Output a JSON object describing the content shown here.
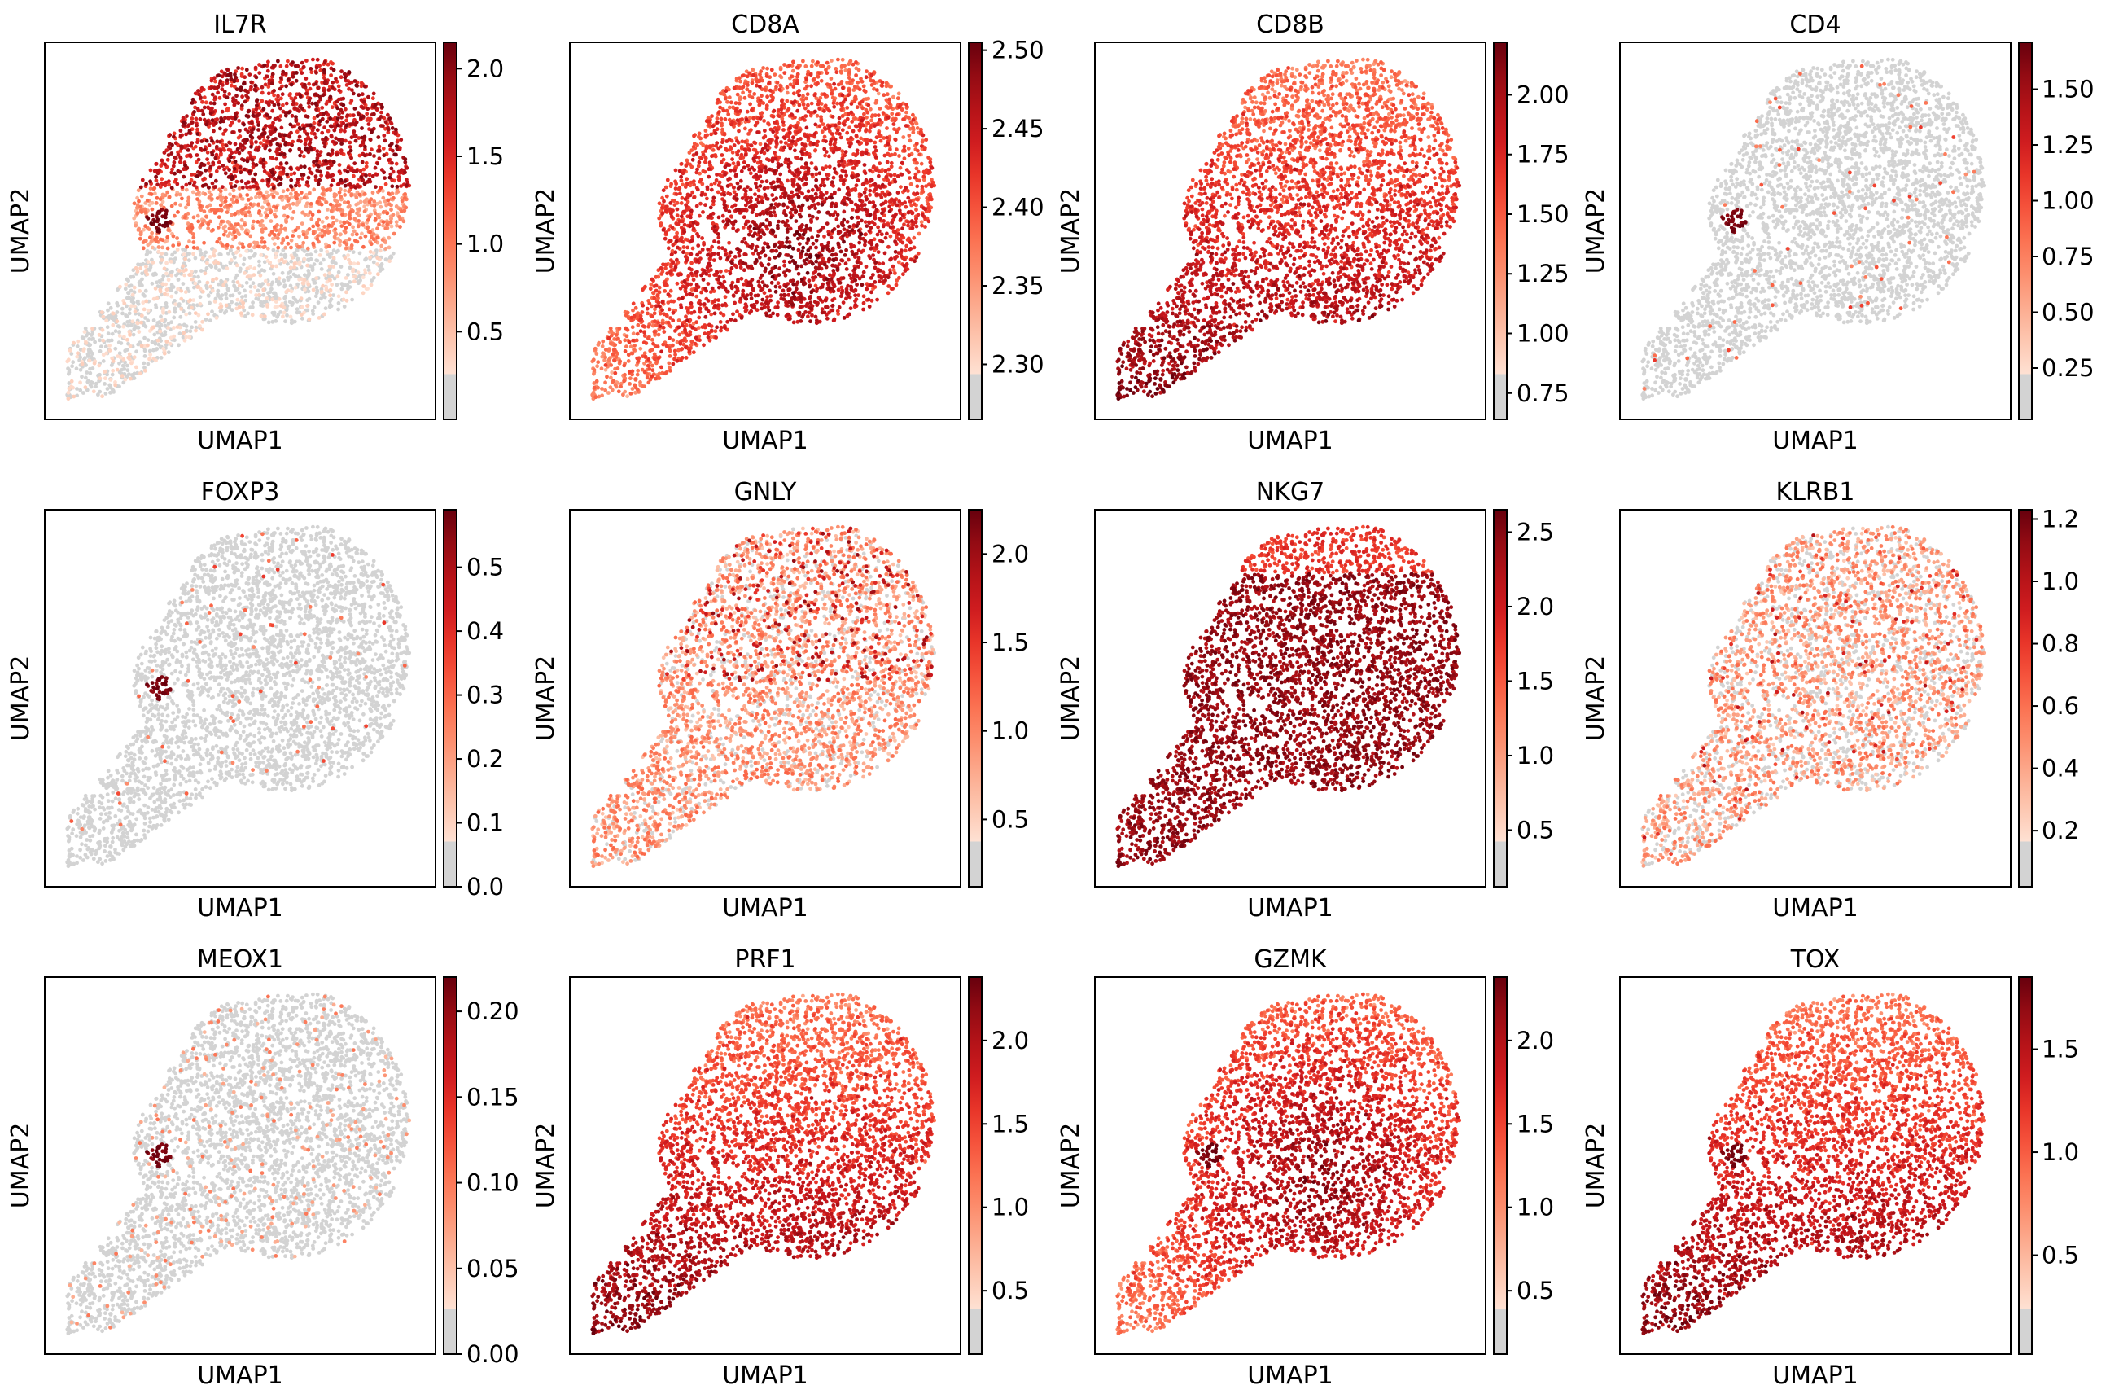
{
  "chart_data": [
    {
      "type": "scatter",
      "title": "IL7R",
      "xlabel": "UMAP1",
      "ylabel": "UMAP2",
      "colorbar_range": [
        0.0,
        2.15
      ],
      "colorbar_ticks": [
        0.5,
        1.0,
        1.5,
        2.0
      ],
      "tick_labels": [
        "0.5",
        "1.0",
        "1.5",
        "2.0"
      ],
      "pattern": "upper_high",
      "hot_spot": true
    },
    {
      "type": "scatter",
      "title": "CD8A",
      "xlabel": "UMAP1",
      "ylabel": "UMAP2",
      "colorbar_range": [
        2.265,
        2.505
      ],
      "colorbar_ticks": [
        2.3,
        2.35,
        2.4,
        2.45,
        2.5
      ],
      "tick_labels": [
        "2.30",
        "2.35",
        "2.40",
        "2.45",
        "2.50"
      ],
      "pattern": "center_high",
      "hot_spot": false
    },
    {
      "type": "scatter",
      "title": "CD8B",
      "xlabel": "UMAP1",
      "ylabel": "UMAP2",
      "colorbar_range": [
        0.64,
        2.22
      ],
      "colorbar_ticks": [
        0.75,
        1.0,
        1.25,
        1.5,
        1.75,
        2.0
      ],
      "tick_labels": [
        "0.75",
        "1.00",
        "1.25",
        "1.50",
        "1.75",
        "2.00"
      ],
      "pattern": "lower_high",
      "hot_spot": false
    },
    {
      "type": "scatter",
      "title": "CD4",
      "xlabel": "UMAP1",
      "ylabel": "UMAP2",
      "colorbar_range": [
        0.02,
        1.71
      ],
      "colorbar_ticks": [
        0.25,
        0.5,
        0.75,
        1.0,
        1.25,
        1.5
      ],
      "tick_labels": [
        "0.25",
        "0.50",
        "0.75",
        "1.00",
        "1.25",
        "1.50"
      ],
      "pattern": "mostly_grey",
      "hot_spot": true
    },
    {
      "type": "scatter",
      "title": "FOXP3",
      "xlabel": "UMAP1",
      "ylabel": "UMAP2",
      "colorbar_range": [
        0.0,
        0.59
      ],
      "colorbar_ticks": [
        0.0,
        0.1,
        0.2,
        0.3,
        0.4,
        0.5
      ],
      "tick_labels": [
        "0.0",
        "0.1",
        "0.2",
        "0.3",
        "0.4",
        "0.5"
      ],
      "pattern": "mostly_grey",
      "hot_spot": true
    },
    {
      "type": "scatter",
      "title": "GNLY",
      "xlabel": "UMAP1",
      "ylabel": "UMAP2",
      "colorbar_range": [
        0.12,
        2.25
      ],
      "colorbar_ticks": [
        0.5,
        1.0,
        1.5,
        2.0
      ],
      "tick_labels": [
        "0.5",
        "1.0",
        "1.5",
        "2.0"
      ],
      "pattern": "mixed_light",
      "hot_spot": false
    },
    {
      "type": "scatter",
      "title": "NKG7",
      "xlabel": "UMAP1",
      "ylabel": "UMAP2",
      "colorbar_range": [
        0.12,
        2.65
      ],
      "colorbar_ticks": [
        0.5,
        1.0,
        1.5,
        2.0,
        2.5
      ],
      "tick_labels": [
        "0.5",
        "1.0",
        "1.5",
        "2.0",
        "2.5"
      ],
      "pattern": "all_high",
      "hot_spot": false
    },
    {
      "type": "scatter",
      "title": "KLRB1",
      "xlabel": "UMAP1",
      "ylabel": "UMAP2",
      "colorbar_range": [
        0.02,
        1.23
      ],
      "colorbar_ticks": [
        0.2,
        0.4,
        0.6,
        0.8,
        1.0,
        1.2
      ],
      "tick_labels": [
        "0.2",
        "0.4",
        "0.6",
        "0.8",
        "1.0",
        "1.2"
      ],
      "pattern": "center_light",
      "hot_spot": false
    },
    {
      "type": "scatter",
      "title": "MEOX1",
      "xlabel": "UMAP1",
      "ylabel": "UMAP2",
      "colorbar_range": [
        0.0,
        0.22
      ],
      "colorbar_ticks": [
        0.0,
        0.05,
        0.1,
        0.15,
        0.2
      ],
      "tick_labels": [
        "0.00",
        "0.05",
        "0.10",
        "0.15",
        "0.20"
      ],
      "pattern": "mostly_grey_faint",
      "hot_spot": true
    },
    {
      "type": "scatter",
      "title": "PRF1",
      "xlabel": "UMAP1",
      "ylabel": "UMAP2",
      "colorbar_range": [
        0.12,
        2.38
      ],
      "colorbar_ticks": [
        0.5,
        1.0,
        1.5,
        2.0
      ],
      "tick_labels": [
        "0.5",
        "1.0",
        "1.5",
        "2.0"
      ],
      "pattern": "lower_high",
      "hot_spot": false
    },
    {
      "type": "scatter",
      "title": "GZMK",
      "xlabel": "UMAP1",
      "ylabel": "UMAP2",
      "colorbar_range": [
        0.12,
        2.38
      ],
      "colorbar_ticks": [
        0.5,
        1.0,
        1.5,
        2.0
      ],
      "tick_labels": [
        "0.5",
        "1.0",
        "1.5",
        "2.0"
      ],
      "pattern": "center_high",
      "hot_spot": true
    },
    {
      "type": "scatter",
      "title": "TOX",
      "xlabel": "UMAP1",
      "ylabel": "UMAP2",
      "colorbar_range": [
        0.02,
        1.85
      ],
      "colorbar_ticks": [
        0.5,
        1.0,
        1.5
      ],
      "tick_labels": [
        "0.5",
        "1.0",
        "1.5"
      ],
      "pattern": "lower_high",
      "hot_spot": true
    }
  ],
  "colors": {
    "grey": "#d3d3d3",
    "reds_stops": [
      "#fff5f0",
      "#fee0d2",
      "#fcbba1",
      "#fc9272",
      "#fb6a4a",
      "#ef3b2c",
      "#cb181d",
      "#a50f15",
      "#67000d"
    ]
  }
}
